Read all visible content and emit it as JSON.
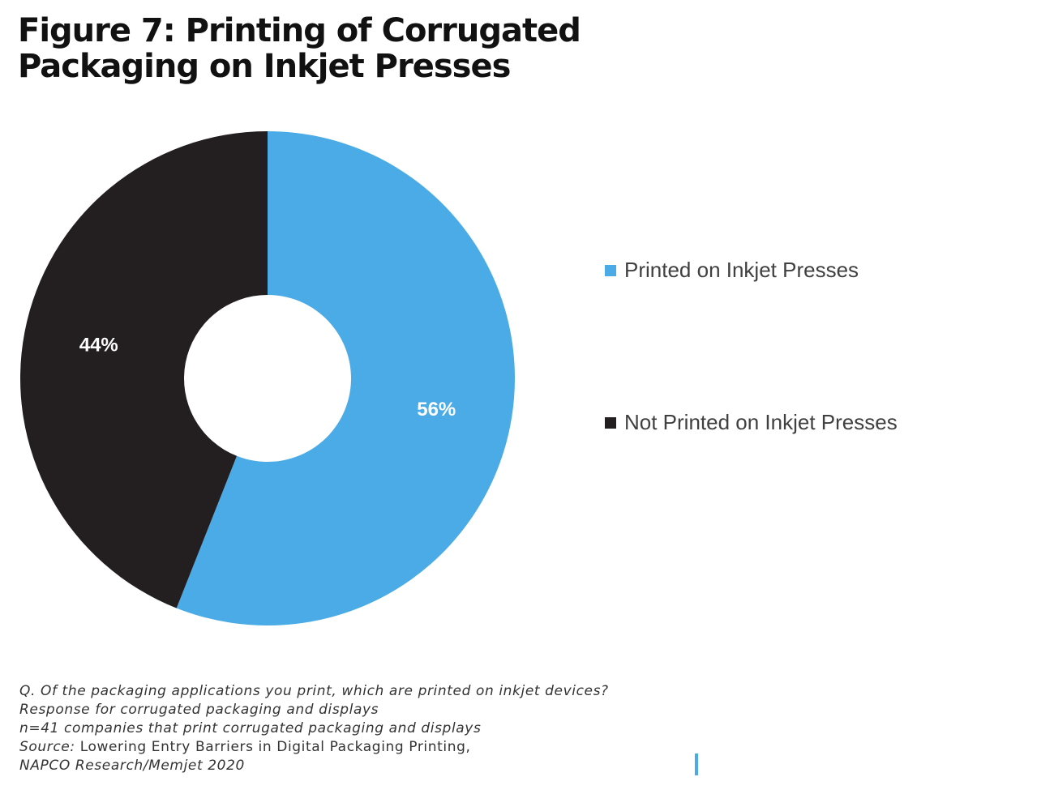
{
  "title": {
    "line1": "Figure 7: Printing of Corrugated",
    "line2": "Packaging on Inkjet Presses"
  },
  "chart_data": {
    "type": "pie",
    "variant": "donut",
    "categories": [
      "Printed on Inkjet Presses",
      "Not Printed on Inkjet Presses"
    ],
    "values": [
      56,
      44
    ],
    "data_labels": [
      "56%",
      "44%"
    ],
    "colors": [
      "#4aabe6",
      "#231f20"
    ],
    "legend_placement": "right",
    "start_angle": "top, clockwise"
  },
  "footnote": {
    "question": "Q. Of the packaging applications you print, which are printed on inkjet devices?",
    "response": "Response for corrugated packaging and displays",
    "sample": "n=41 companies that print corrugated packaging and displays",
    "source_label": "Source:",
    "source_text": " Lowering Entry Barriers in Digital Packaging Printing,",
    "source_org": "NAPCO Research/Memjet 2020"
  },
  "accent_color": "#4aabe6"
}
